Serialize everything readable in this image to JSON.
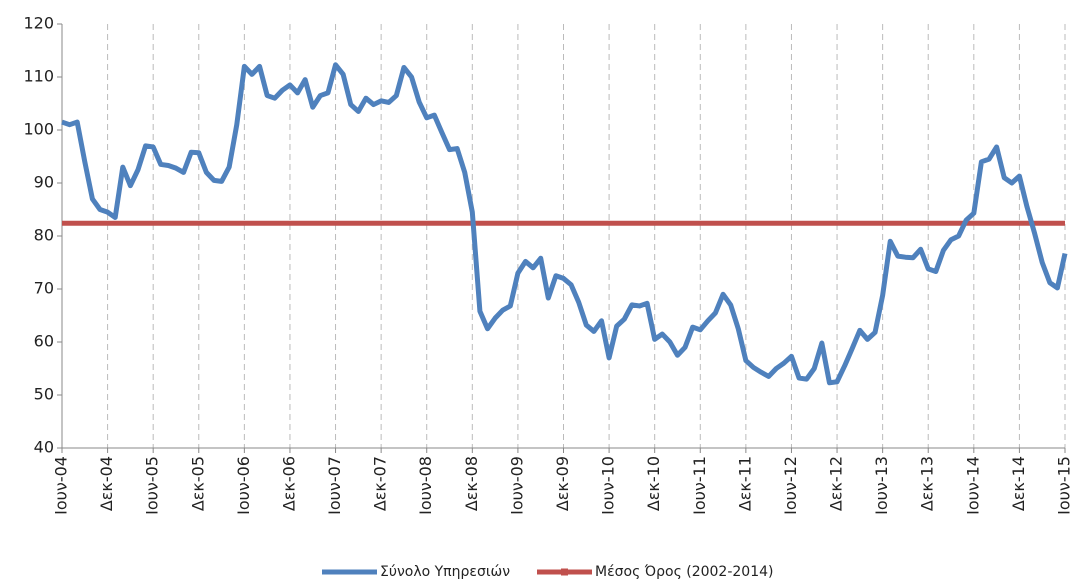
{
  "chart_data": {
    "type": "line",
    "categories": [
      "Ιουν-04",
      null,
      null,
      null,
      null,
      null,
      "Δεκ-04",
      null,
      null,
      null,
      null,
      null,
      "Ιουν-05",
      null,
      null,
      null,
      null,
      null,
      "Δεκ-05",
      null,
      null,
      null,
      null,
      null,
      "Ιουν-06",
      null,
      null,
      null,
      null,
      null,
      "Δεκ-06",
      null,
      null,
      null,
      null,
      null,
      "Ιουν-07",
      null,
      null,
      null,
      null,
      null,
      "Δεκ-07",
      null,
      null,
      null,
      null,
      null,
      "Ιουν-08",
      null,
      null,
      null,
      null,
      null,
      "Δεκ-08",
      null,
      null,
      null,
      null,
      null,
      "Ιουν-09",
      null,
      null,
      null,
      null,
      null,
      "Δεκ-09",
      null,
      null,
      null,
      null,
      null,
      "Ιουν-10",
      null,
      null,
      null,
      null,
      null,
      "Δεκ-10",
      null,
      null,
      null,
      null,
      null,
      "Ιουν-11",
      null,
      null,
      null,
      null,
      null,
      "Δεκ-11",
      null,
      null,
      null,
      null,
      null,
      "Ιουν-12",
      null,
      null,
      null,
      null,
      null,
      "Δεκ-12",
      null,
      null,
      null,
      null,
      null,
      "Ιουν-13",
      null,
      null,
      null,
      null,
      null,
      "Δεκ-13",
      null,
      null,
      null,
      null,
      null,
      "Ιουν-14",
      null,
      null,
      null,
      null,
      null,
      "Δεκ-14",
      null,
      null,
      null,
      null,
      null,
      "Ιουν-15"
    ],
    "series": [
      {
        "name": "Σύνολο Υπηρεσιών",
        "color": "#4f81bd",
        "values": [
          101.5,
          101,
          101.5,
          94,
          87,
          85,
          84.5,
          83.5,
          93,
          89.5,
          92.5,
          97,
          96.8,
          93.5,
          93.3,
          92.8,
          92,
          95.8,
          95.7,
          92,
          90.5,
          90.3,
          93,
          101,
          112,
          110.5,
          112,
          106.5,
          106,
          107.5,
          108.5,
          107,
          109.5,
          104.3,
          106.5,
          107,
          112.3,
          110.5,
          104.8,
          103.5,
          106,
          104.8,
          105.5,
          105.2,
          106.5,
          111.8,
          110,
          105.3,
          102.3,
          102.8,
          99.5,
          96.3,
          96.5,
          92,
          84.5,
          65.8,
          62.5,
          64.5,
          66,
          66.8,
          73,
          75.2,
          74,
          75.8,
          68.3,
          72.5,
          72,
          70.8,
          67.5,
          63.2,
          62,
          64,
          57,
          63,
          64.3,
          67,
          66.8,
          67.3,
          60.5,
          61.5,
          60,
          57.5,
          59,
          62.8,
          62.3,
          64,
          65.5,
          69,
          67,
          62.5,
          56.5,
          55.2,
          54.3,
          53.5,
          55,
          56,
          57.3,
          53.2,
          53,
          55,
          59.8,
          52.3,
          52.5,
          55.5,
          58.8,
          62.2,
          60.5,
          61.8,
          68.8,
          79,
          76.2,
          76,
          75.9,
          77.5,
          73.8,
          73.3,
          77.3,
          79.3,
          80,
          83,
          84.3,
          94,
          94.5,
          96.8,
          91,
          90,
          91.3,
          85.5,
          80.5,
          75,
          71.2,
          70.2,
          76.7
        ]
      },
      {
        "name": "Μέσος Όρος (2002-2014)",
        "color": "#c0504d",
        "values": [
          82.4,
          82.4,
          82.4,
          82.4,
          82.4,
          82.4,
          82.4,
          82.4,
          82.4,
          82.4,
          82.4,
          82.4,
          82.4,
          82.4,
          82.4,
          82.4,
          82.4,
          82.4,
          82.4,
          82.4,
          82.4,
          82.4,
          82.4,
          82.4,
          82.4,
          82.4,
          82.4,
          82.4,
          82.4,
          82.4,
          82.4,
          82.4,
          82.4,
          82.4,
          82.4,
          82.4,
          82.4,
          82.4,
          82.4,
          82.4,
          82.4,
          82.4,
          82.4,
          82.4,
          82.4,
          82.4,
          82.4,
          82.4,
          82.4,
          82.4,
          82.4,
          82.4,
          82.4,
          82.4,
          82.4,
          82.4,
          82.4,
          82.4,
          82.4,
          82.4,
          82.4,
          82.4,
          82.4,
          82.4,
          82.4,
          82.4,
          82.4,
          82.4,
          82.4,
          82.4,
          82.4,
          82.4,
          82.4,
          82.4,
          82.4,
          82.4,
          82.4,
          82.4,
          82.4,
          82.4,
          82.4,
          82.4,
          82.4,
          82.4,
          82.4,
          82.4,
          82.4,
          82.4,
          82.4,
          82.4,
          82.4,
          82.4,
          82.4,
          82.4,
          82.4,
          82.4,
          82.4,
          82.4,
          82.4,
          82.4,
          82.4,
          82.4,
          82.4,
          82.4,
          82.4,
          82.4,
          82.4,
          82.4,
          82.4,
          82.4,
          82.4,
          82.4,
          82.4,
          82.4,
          82.4,
          82.4,
          82.4,
          82.4,
          82.4,
          82.4,
          82.4,
          82.4,
          82.4,
          82.4,
          82.4,
          82.4,
          82.4,
          82.4,
          82.4,
          82.4,
          82.4,
          82.4,
          82.4
        ]
      }
    ],
    "ylim": [
      40,
      120
    ],
    "yticks": [
      40,
      50,
      60,
      70,
      80,
      90,
      100,
      110,
      120
    ],
    "xgrid": true,
    "legend": "bottom"
  }
}
